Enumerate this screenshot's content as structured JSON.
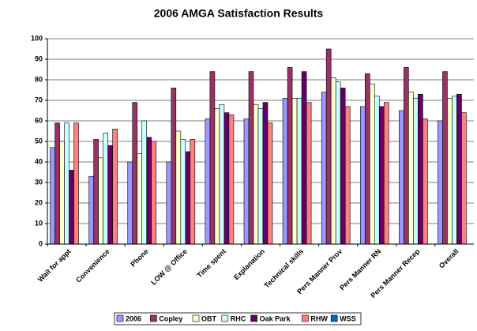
{
  "chart_data": {
    "type": "bar",
    "title": "2006 AMGA Satisfaction Results",
    "categories": [
      "Wait for appt",
      "Convenience",
      "Phone",
      "LOW @ Office",
      "Time spent",
      "Explanation",
      "Technical skills",
      "Pers Manner Prov",
      "Pers Manner RN",
      "Pers Manner Recep",
      "Overall"
    ],
    "series": [
      {
        "name": "2006",
        "color": "#9999ff",
        "values": [
          47,
          33,
          40,
          40,
          61,
          61,
          71,
          74,
          67,
          65,
          60
        ]
      },
      {
        "name": "Copley",
        "color": "#993366",
        "values": [
          59,
          51,
          69,
          76,
          84,
          84,
          86,
          95,
          83,
          86,
          84
        ]
      },
      {
        "name": "OBT",
        "color": "#ffffcc",
        "values": [
          50,
          42,
          44,
          55,
          66,
          68,
          71,
          81,
          78,
          74,
          71
        ]
      },
      {
        "name": "RHC",
        "color": "#ccffff",
        "values": [
          59,
          54,
          60,
          51,
          68,
          66,
          71,
          79,
          72,
          71,
          72
        ]
      },
      {
        "name": "Oak Park",
        "color": "#660066",
        "values": [
          36,
          48,
          52,
          45,
          64,
          69,
          84,
          76,
          67,
          73,
          73
        ]
      },
      {
        "name": "RHW",
        "color": "#ff8080",
        "values": [
          59,
          56,
          50,
          51,
          63,
          59,
          69,
          67,
          69,
          61,
          64
        ]
      },
      {
        "name": "WSS",
        "color": "#0066cc",
        "values": [
          null,
          null,
          null,
          null,
          null,
          null,
          null,
          null,
          null,
          null,
          null
        ]
      }
    ],
    "ylim": [
      0,
      100
    ],
    "yticks": [
      0,
      10,
      20,
      30,
      40,
      50,
      60,
      70,
      80,
      90,
      100
    ],
    "grid": true
  }
}
